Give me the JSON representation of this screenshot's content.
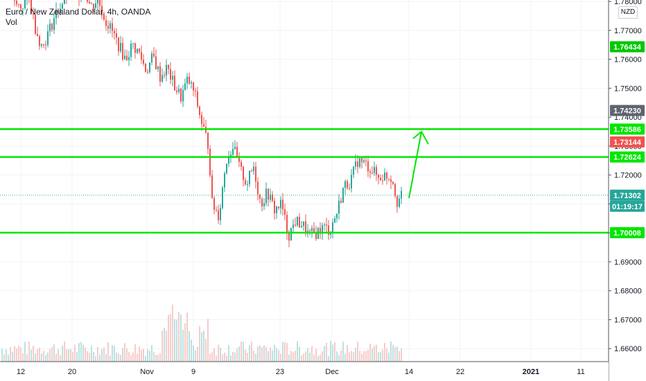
{
  "legend": {
    "title": "Euro / New Zealand Dollar, 4h, OANDA",
    "volume_label": "Vol"
  },
  "currency_badge": "NZD",
  "colors": {
    "up": "#26a69a",
    "down": "#ef5350",
    "support_resistance": "#00e600",
    "grid": "#f0f3fa",
    "axis_border": "#50535e"
  },
  "chart_data": {
    "type": "candlestick",
    "symbol": "EURNZD",
    "timeframe": "4h",
    "ylim": [
      1.6555,
      1.7805
    ],
    "y_ticks": [
      "1.78000",
      "1.77000",
      "1.76000",
      "1.75000",
      "1.74000",
      "1.73000",
      "1.72000",
      "1.71000",
      "1.70000",
      "1.69000",
      "1.68000",
      "1.67000",
      "1.66000"
    ],
    "x_ticks": [
      "12",
      "20",
      "Nov",
      "9",
      "23",
      "Dec",
      "14",
      "22",
      "2021",
      "11"
    ],
    "x_tick_bold": [
      "2021"
    ],
    "price_tags": [
      {
        "value": 1.76434,
        "label": "1.76434",
        "color": "#00c800"
      },
      {
        "value": 1.7423,
        "label": "1.74230",
        "color": "#606370"
      },
      {
        "value": 1.73586,
        "label": "1.73586",
        "color": "#00e600"
      },
      {
        "value": 1.73144,
        "label": "1.73144",
        "color": "#ef5350"
      },
      {
        "value": 1.72624,
        "label": "1.72624",
        "color": "#00e600"
      },
      {
        "value": 1.71302,
        "label": "1.71302",
        "color": "#26a69a"
      },
      {
        "value": 1.70008,
        "label": "1.70008",
        "color": "#00e600"
      }
    ],
    "countdown": {
      "label": "01:19:17",
      "color": "#26a69a"
    },
    "horizontal_lines": [
      1.73586,
      1.72624,
      1.70008
    ],
    "current_price": 1.71302,
    "price_path": [
      [
        0,
        1.784
      ],
      [
        10,
        1.7855
      ],
      [
        20,
        1.779
      ],
      [
        30,
        1.778
      ],
      [
        40,
        1.782
      ],
      [
        50,
        1.771
      ],
      [
        60,
        1.764
      ],
      [
        70,
        1.77
      ],
      [
        80,
        1.776
      ],
      [
        90,
        1.78
      ],
      [
        100,
        1.784
      ],
      [
        110,
        1.782
      ],
      [
        120,
        1.785
      ],
      [
        130,
        1.778
      ],
      [
        140,
        1.781
      ],
      [
        150,
        1.774
      ],
      [
        160,
        1.77
      ],
      [
        170,
        1.765
      ],
      [
        180,
        1.76
      ],
      [
        190,
        1.765
      ],
      [
        200,
        1.762
      ],
      [
        210,
        1.756
      ],
      [
        220,
        1.761
      ],
      [
        230,
        1.754
      ],
      [
        240,
        1.757
      ],
      [
        250,
        1.751
      ],
      [
        260,
        1.747
      ],
      [
        270,
        1.753
      ],
      [
        280,
        1.748
      ],
      [
        290,
        1.738
      ],
      [
        300,
        1.73
      ],
      [
        305,
        1.71
      ],
      [
        315,
        1.706
      ],
      [
        325,
        1.725
      ],
      [
        335,
        1.73
      ],
      [
        345,
        1.722
      ],
      [
        355,
        1.717
      ],
      [
        365,
        1.723
      ],
      [
        375,
        1.71
      ],
      [
        385,
        1.714
      ],
      [
        395,
        1.708
      ],
      [
        405,
        1.71
      ],
      [
        415,
        1.699
      ],
      [
        425,
        1.704
      ],
      [
        435,
        1.703
      ],
      [
        445,
        1.699
      ],
      [
        455,
        1.7
      ],
      [
        465,
        1.702
      ],
      [
        475,
        1.701
      ],
      [
        485,
        1.707
      ],
      [
        495,
        1.716
      ],
      [
        505,
        1.718
      ],
      [
        515,
        1.725
      ],
      [
        525,
        1.724
      ],
      [
        535,
        1.722
      ],
      [
        545,
        1.719
      ],
      [
        555,
        1.72
      ],
      [
        565,
        1.719
      ],
      [
        572,
        1.711
      ],
      [
        580,
        1.713
      ]
    ],
    "projection_arrow": {
      "from": [
        590,
        1.712
      ],
      "to": [
        608,
        1.735
      ]
    }
  }
}
